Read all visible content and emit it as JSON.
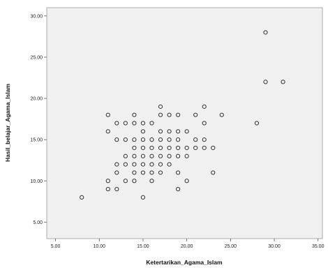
{
  "chart_data": {
    "type": "scatter",
    "title": "",
    "xlabel": "Ketertarikan_Agama_Islam",
    "ylabel": "Hasil_belajar_Agama_Islam",
    "xlim": [
      4,
      35.5
    ],
    "ylim": [
      3,
      31
    ],
    "xticks": [
      5,
      10,
      15,
      20,
      25,
      30,
      35
    ],
    "yticks": [
      5,
      10,
      15,
      20,
      25,
      30
    ],
    "xtick_labels": [
      "5.00",
      "10.00",
      "15.00",
      "20.00",
      "25.00",
      "30.00",
      "35.00"
    ],
    "ytick_labels": [
      "5.00",
      "10.00",
      "15.00",
      "20.00",
      "25.00",
      "30.00"
    ],
    "grid": false,
    "plot_background": "#f0f0f0",
    "marker": "open-circle",
    "marker_color": "#333333",
    "points": [
      [
        8,
        8
      ],
      [
        11,
        9
      ],
      [
        11,
        10
      ],
      [
        11,
        16
      ],
      [
        11,
        18
      ],
      [
        12,
        9
      ],
      [
        12,
        11
      ],
      [
        12,
        12
      ],
      [
        12,
        15
      ],
      [
        12,
        17
      ],
      [
        13,
        10
      ],
      [
        13,
        12
      ],
      [
        13,
        13
      ],
      [
        13,
        15
      ],
      [
        13,
        17
      ],
      [
        14,
        10
      ],
      [
        14,
        11
      ],
      [
        14,
        12
      ],
      [
        14,
        13
      ],
      [
        14,
        14
      ],
      [
        14,
        15
      ],
      [
        14,
        17
      ],
      [
        14,
        18
      ],
      [
        15,
        8
      ],
      [
        15,
        11
      ],
      [
        15,
        12
      ],
      [
        15,
        13
      ],
      [
        15,
        14
      ],
      [
        15,
        15
      ],
      [
        15,
        16
      ],
      [
        15,
        17
      ],
      [
        16,
        10
      ],
      [
        16,
        11
      ],
      [
        16,
        12
      ],
      [
        16,
        13
      ],
      [
        16,
        14
      ],
      [
        16,
        15
      ],
      [
        16,
        17
      ],
      [
        17,
        11
      ],
      [
        17,
        12
      ],
      [
        17,
        13
      ],
      [
        17,
        14
      ],
      [
        17,
        15
      ],
      [
        17,
        16
      ],
      [
        17,
        18
      ],
      [
        17,
        19
      ],
      [
        18,
        12
      ],
      [
        18,
        13
      ],
      [
        18,
        14
      ],
      [
        18,
        15
      ],
      [
        18,
        16
      ],
      [
        18,
        18
      ],
      [
        19,
        9
      ],
      [
        19,
        11
      ],
      [
        19,
        13
      ],
      [
        19,
        14
      ],
      [
        19,
        15
      ],
      [
        19,
        16
      ],
      [
        19,
        18
      ],
      [
        20,
        10
      ],
      [
        20,
        13
      ],
      [
        20,
        14
      ],
      [
        20,
        16
      ],
      [
        21,
        14
      ],
      [
        21,
        15
      ],
      [
        21,
        18
      ],
      [
        22,
        14
      ],
      [
        22,
        15
      ],
      [
        22,
        17
      ],
      [
        22,
        19
      ],
      [
        23,
        11
      ],
      [
        23,
        14
      ],
      [
        24,
        18
      ],
      [
        28,
        17
      ],
      [
        29,
        22
      ],
      [
        29,
        28
      ],
      [
        31,
        22
      ]
    ]
  }
}
